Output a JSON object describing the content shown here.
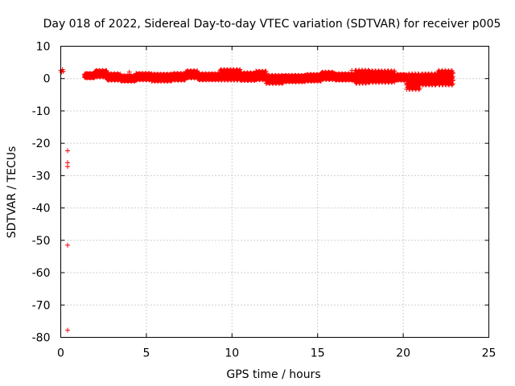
{
  "chart_data": {
    "type": "scatter",
    "title": "Day 018 of 2022, Sidereal Day-to-day VTEC variation (SDTVAR) for receiver p005",
    "xlabel": "GPS time / hours",
    "ylabel": "SDTVAR / TECUs",
    "xlim": [
      0,
      25
    ],
    "ylim": [
      -80,
      10
    ],
    "xticks": [
      0,
      5,
      10,
      15,
      20,
      25
    ],
    "yticks": [
      10,
      0,
      -10,
      -20,
      -30,
      -40,
      -50,
      -60,
      -70,
      -80
    ],
    "grid": true,
    "marker": "plus",
    "series_color": "#ff0000",
    "outliers": [
      {
        "x": 0.0,
        "y": 2.5
      },
      {
        "x": 0.05,
        "y": 2.0
      },
      {
        "x": 0.1,
        "y": 2.8
      },
      {
        "x": 0.15,
        "y": 2.2
      },
      {
        "x": 0.4,
        "y": -22.3
      },
      {
        "x": 0.4,
        "y": -26.0
      },
      {
        "x": 0.4,
        "y": -27.2
      },
      {
        "x": 0.4,
        "y": -51.5
      },
      {
        "x": 0.4,
        "y": -77.8
      },
      {
        "x": 4.0,
        "y": 2.0
      },
      {
        "x": 17.0,
        "y": 2.5
      },
      {
        "x": 17.0,
        "y": 0.0
      }
    ],
    "bands": [
      {
        "x_start": 1.4,
        "x_end": 2.0,
        "y_min": 0.2,
        "y_max": 1.6
      },
      {
        "x_start": 2.0,
        "x_end": 2.7,
        "y_min": 0.5,
        "y_max": 2.5
      },
      {
        "x_start": 2.7,
        "x_end": 3.5,
        "y_min": -0.5,
        "y_max": 1.5
      },
      {
        "x_start": 3.5,
        "x_end": 4.4,
        "y_min": -0.8,
        "y_max": 0.9
      },
      {
        "x_start": 4.4,
        "x_end": 5.3,
        "y_min": -0.4,
        "y_max": 1.6
      },
      {
        "x_start": 5.3,
        "x_end": 6.5,
        "y_min": -0.8,
        "y_max": 1.4
      },
      {
        "x_start": 6.5,
        "x_end": 7.3,
        "y_min": -0.5,
        "y_max": 1.6
      },
      {
        "x_start": 7.3,
        "x_end": 8.0,
        "y_min": 0.2,
        "y_max": 2.4
      },
      {
        "x_start": 8.0,
        "x_end": 9.3,
        "y_min": -0.4,
        "y_max": 1.5
      },
      {
        "x_start": 9.3,
        "x_end": 10.5,
        "y_min": -0.5,
        "y_max": 2.8
      },
      {
        "x_start": 10.5,
        "x_end": 11.4,
        "y_min": -0.6,
        "y_max": 1.8
      },
      {
        "x_start": 11.4,
        "x_end": 12.0,
        "y_min": -0.4,
        "y_max": 2.3
      },
      {
        "x_start": 12.0,
        "x_end": 13.0,
        "y_min": -1.5,
        "y_max": 1.0
      },
      {
        "x_start": 13.0,
        "x_end": 14.3,
        "y_min": -1.0,
        "y_max": 1.0
      },
      {
        "x_start": 14.3,
        "x_end": 15.2,
        "y_min": -0.8,
        "y_max": 1.3
      },
      {
        "x_start": 15.2,
        "x_end": 16.0,
        "y_min": -0.3,
        "y_max": 2.0
      },
      {
        "x_start": 16.0,
        "x_end": 17.2,
        "y_min": -0.5,
        "y_max": 1.5
      },
      {
        "x_start": 17.2,
        "x_end": 18.0,
        "y_min": -1.5,
        "y_max": 2.6
      },
      {
        "x_start": 18.0,
        "x_end": 19.5,
        "y_min": -1.2,
        "y_max": 2.4
      },
      {
        "x_start": 19.5,
        "x_end": 20.2,
        "y_min": -0.5,
        "y_max": 1.3
      },
      {
        "x_start": 20.2,
        "x_end": 21.0,
        "y_min": -3.4,
        "y_max": 1.5
      },
      {
        "x_start": 21.0,
        "x_end": 22.0,
        "y_min": -2.0,
        "y_max": 1.5
      },
      {
        "x_start": 22.0,
        "x_end": 22.9,
        "y_min": -2.0,
        "y_max": 2.5
      }
    ]
  }
}
